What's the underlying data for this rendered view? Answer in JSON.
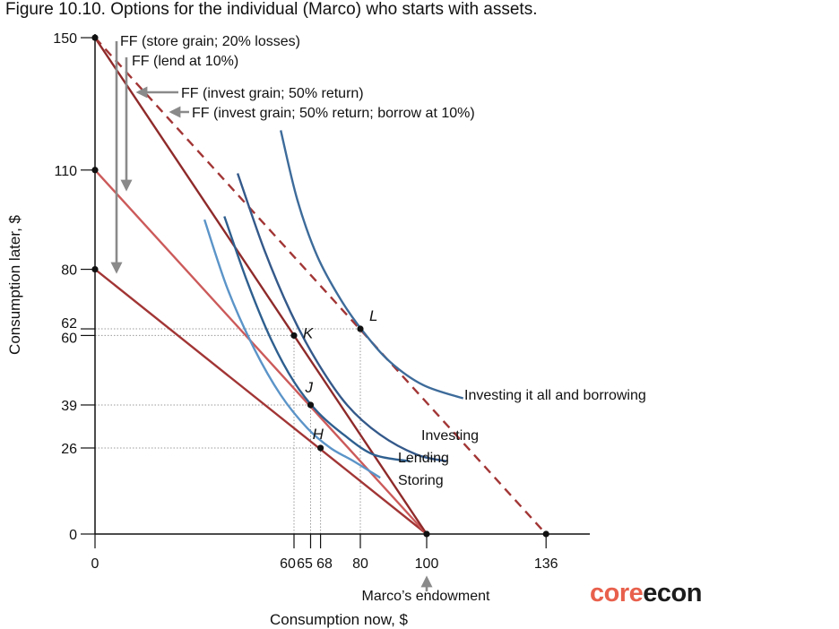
{
  "figure_title": "Figure 10.10. Options for the individual (Marco) who starts with assets.",
  "logo": {
    "part1": "core",
    "part2": "econ"
  },
  "colors": {
    "storing_line": "#a23535",
    "lending_line": "#cc5a5a",
    "investing_line": "#8f2a2a",
    "borrowing_line": "#a23535",
    "curve_storing": "#5b94c8",
    "curve_lending": "#2e5f8f",
    "curve_investing": "#34598a",
    "curve_borrowing": "#3d6b9a",
    "arrow": "#8a8a8a",
    "logo_core": "#e8604c",
    "logo_econ": "#1c1c1c"
  },
  "chart_data": {
    "type": "line",
    "xlabel": "Consumption now, $",
    "ylabel": "Consumption later, $",
    "xlim": [
      0,
      150
    ],
    "ylim": [
      0,
      150
    ],
    "x_ticks": [
      "0",
      "60",
      "65",
      "68",
      "80",
      "100",
      "136"
    ],
    "y_ticks": [
      "0",
      "26",
      "39",
      "60",
      "62",
      "80",
      "110",
      "150"
    ],
    "x_tick_values": [
      0,
      60,
      65,
      68,
      80,
      100,
      136
    ],
    "y_tick_values": [
      0,
      26,
      39,
      60,
      62,
      80,
      110,
      150
    ],
    "feasible_frontiers": [
      {
        "name": "FF (store grain; 20% losses)",
        "x": [
          0,
          100
        ],
        "y": [
          80,
          0
        ],
        "style": "solid"
      },
      {
        "name": "FF (lend at 10%)",
        "x": [
          0,
          100
        ],
        "y": [
          110,
          0
        ],
        "style": "solid"
      },
      {
        "name": "FF (invest grain; 50% return)",
        "x": [
          0,
          100
        ],
        "y": [
          150,
          0
        ],
        "style": "solid"
      },
      {
        "name": "FF (invest grain; 50% return; borrow at 10%)",
        "x": [
          0,
          136
        ],
        "y": [
          150,
          0
        ],
        "style": "dashed"
      }
    ],
    "indifference_curves": [
      {
        "name": "Storing",
        "x": [
          33,
          40,
          48,
          56,
          64,
          71,
          78,
          86
        ],
        "y": [
          95,
          74,
          56,
          42,
          32,
          26,
          22,
          17
        ]
      },
      {
        "name": "Lending",
        "x": [
          39,
          46,
          53,
          60,
          67,
          75,
          84,
          95
        ],
        "y": [
          96,
          76,
          59,
          46,
          37,
          30,
          24,
          22
        ]
      },
      {
        "name": "Investing",
        "x": [
          43,
          51,
          59,
          67,
          76,
          86,
          97,
          106
        ],
        "y": [
          109,
          86,
          67,
          52,
          39,
          30,
          24,
          22
        ]
      },
      {
        "name": "Investing  it all and borrowing",
        "x": [
          56,
          61,
          67,
          74,
          81,
          89,
          99,
          111
        ],
        "y": [
          122,
          101,
          84,
          71,
          61,
          52,
          45,
          41
        ]
      }
    ],
    "points": [
      {
        "label": "H",
        "x": 68,
        "y": 26
      },
      {
        "label": "J",
        "x": 65,
        "y": 39
      },
      {
        "label": "K",
        "x": 60,
        "y": 60
      },
      {
        "label": "L",
        "x": 80,
        "y": 62
      }
    ],
    "endpoint_dots": [
      {
        "x": 0,
        "y": 150
      },
      {
        "x": 0,
        "y": 110
      },
      {
        "x": 0,
        "y": 80
      },
      {
        "x": 100,
        "y": 0
      },
      {
        "x": 136,
        "y": 0
      }
    ],
    "annotations": {
      "ff_store": "FF (store grain; 20% losses)",
      "ff_lend": "FF (lend at 10%)",
      "ff_invest": "FF (invest grain; 50% return)",
      "ff_borrow": "FF (invest grain; 50% return; borrow at 10%)",
      "endowment": "Marco’s endowment",
      "curve_storing": "Storing",
      "curve_lending": "Lending",
      "curve_investing": "Investing",
      "curve_borrowing": "Investing  it all and borrowing"
    },
    "grid": false
  }
}
